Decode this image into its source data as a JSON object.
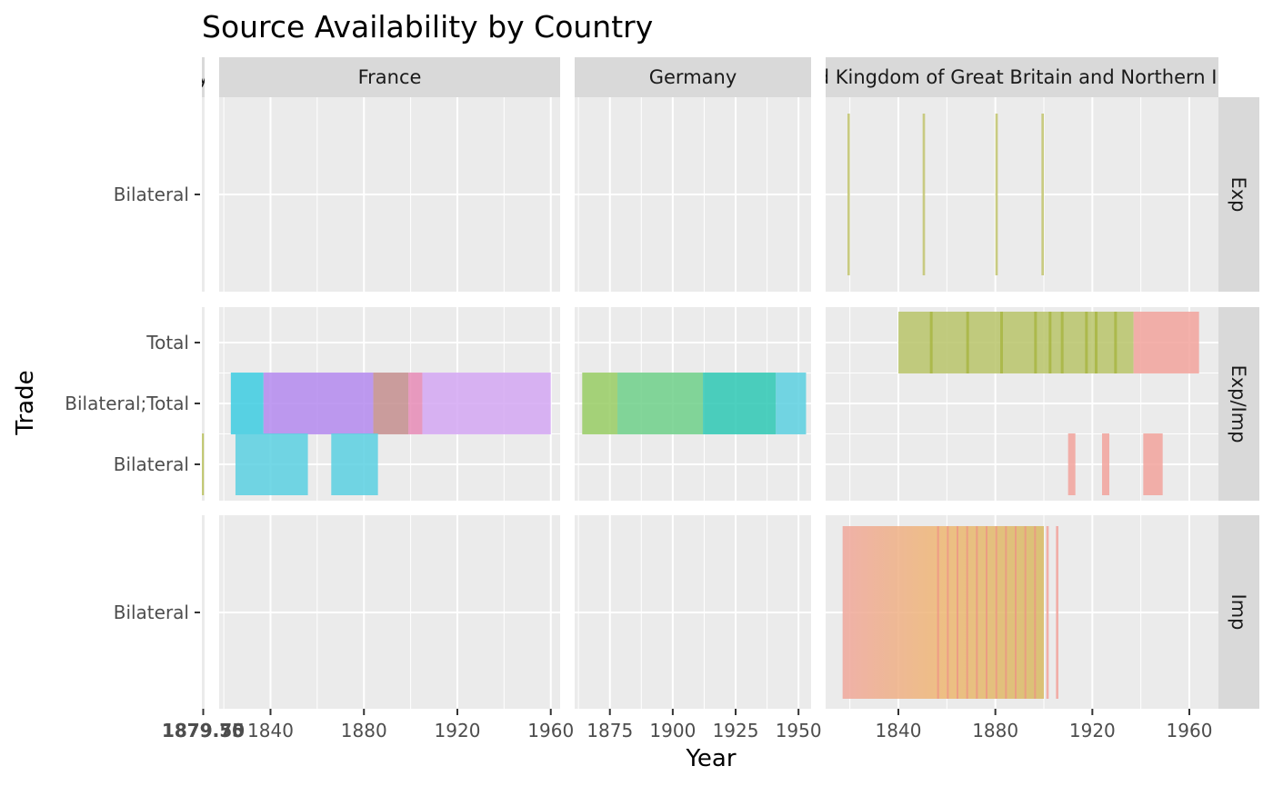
{
  "chart_data": {
    "type": "bar",
    "title": "Source Availability by Country",
    "xlabel": "Year",
    "ylabel": "Trade",
    "grid": true,
    "legend": "none",
    "facet_columns": [
      "y",
      "France",
      "Germany",
      "United Kingdom of Great Britain and Northern Ireland"
    ],
    "facet_rows": [
      "Exp",
      "Exp/Imp",
      "Imp"
    ],
    "y_categories_by_row": [
      [
        "Bilateral"
      ],
      [
        "Bilateral",
        "Bilateral;Total",
        "Total"
      ],
      [
        "Bilateral"
      ]
    ],
    "x_ticks_by_column": [
      [
        "1879.50",
        "1879.75"
      ],
      [
        "1840",
        "1880",
        "1920",
        "1960"
      ],
      [
        "1875",
        "1900",
        "1925",
        "1950"
      ],
      [
        "1840",
        "1880",
        "1920",
        "1960"
      ]
    ],
    "x_ranges_by_column": [
      [
        1879.45,
        1879.8
      ],
      [
        1818,
        1964
      ],
      [
        1861,
        1955
      ],
      [
        1810,
        1972
      ]
    ],
    "series": [
      {
        "column": 0,
        "row": 1,
        "category": "Bilateral",
        "start": 1879.47,
        "end": 1879.49,
        "color": "#b7bf54"
      },
      {
        "column": 1,
        "row": 1,
        "category": "Bilateral;Total",
        "start": 1823,
        "end": 1837,
        "color": "#3dcde2"
      },
      {
        "column": 1,
        "row": 1,
        "category": "Bilateral;Total",
        "start": 1837,
        "end": 1884,
        "color": "#b489ee"
      },
      {
        "column": 1,
        "row": 1,
        "category": "Bilateral;Total",
        "start": 1884,
        "end": 1899,
        "color": "#c48e8e"
      },
      {
        "column": 1,
        "row": 1,
        "category": "Bilateral;Total",
        "start": 1899,
        "end": 1905,
        "color": "#e68bb6"
      },
      {
        "column": 1,
        "row": 1,
        "category": "Bilateral;Total",
        "start": 1905,
        "end": 1960,
        "color": "#d3a7f3"
      },
      {
        "column": 1,
        "row": 1,
        "category": "Bilateral",
        "start": 1825,
        "end": 1856,
        "color": "#5bd0e2"
      },
      {
        "column": 1,
        "row": 1,
        "category": "Bilateral",
        "start": 1866,
        "end": 1886,
        "color": "#5bd0e2"
      },
      {
        "column": 2,
        "row": 1,
        "category": "Bilateral;Total",
        "start": 1864,
        "end": 1878,
        "color": "#98cc64"
      },
      {
        "column": 2,
        "row": 1,
        "category": "Bilateral;Total",
        "start": 1878,
        "end": 1912,
        "color": "#6fd08a"
      },
      {
        "column": 2,
        "row": 1,
        "category": "Bilateral;Total",
        "start": 1912,
        "end": 1941,
        "color": "#2ec8b4"
      },
      {
        "column": 2,
        "row": 1,
        "category": "Bilateral;Total",
        "start": 1941,
        "end": 1953,
        "color": "#5cd0e0"
      },
      {
        "column": 3,
        "row": 0,
        "category": "Bilateral",
        "start": 1819,
        "end": 1820,
        "color": "#c2c46e"
      },
      {
        "column": 3,
        "row": 0,
        "category": "Bilateral",
        "start": 1850,
        "end": 1851,
        "color": "#c2c46e"
      },
      {
        "column": 3,
        "row": 0,
        "category": "Bilateral",
        "start": 1880,
        "end": 1881,
        "color": "#c2c46e"
      },
      {
        "column": 3,
        "row": 0,
        "category": "Bilateral",
        "start": 1899,
        "end": 1900,
        "color": "#c2c46e"
      },
      {
        "column": 3,
        "row": 1,
        "category": "Total",
        "start": 1840,
        "end": 1937,
        "color": "#b9c46a"
      },
      {
        "column": 3,
        "row": 1,
        "category": "Total",
        "start": 1937,
        "end": 1964,
        "color": "#f2a39c"
      },
      {
        "column": 3,
        "row": 1,
        "category": "Bilateral",
        "start": 1910,
        "end": 1913,
        "color": "#f2a39c"
      },
      {
        "column": 3,
        "row": 1,
        "category": "Bilateral",
        "start": 1924,
        "end": 1927,
        "color": "#f2a39c"
      },
      {
        "column": 3,
        "row": 1,
        "category": "Bilateral",
        "start": 1941,
        "end": 1949,
        "color": "#f2a39c"
      },
      {
        "column": 3,
        "row": 2,
        "category": "Bilateral",
        "start": 1817,
        "end": 1900,
        "color": "#efae8c"
      },
      {
        "column": 3,
        "row": 2,
        "category": "Bilateral",
        "start": 1901,
        "end": 1902,
        "color": "#f2a39c"
      },
      {
        "column": 3,
        "row": 2,
        "category": "Bilateral",
        "start": 1905,
        "end": 1906,
        "color": "#f2a39c"
      }
    ]
  }
}
